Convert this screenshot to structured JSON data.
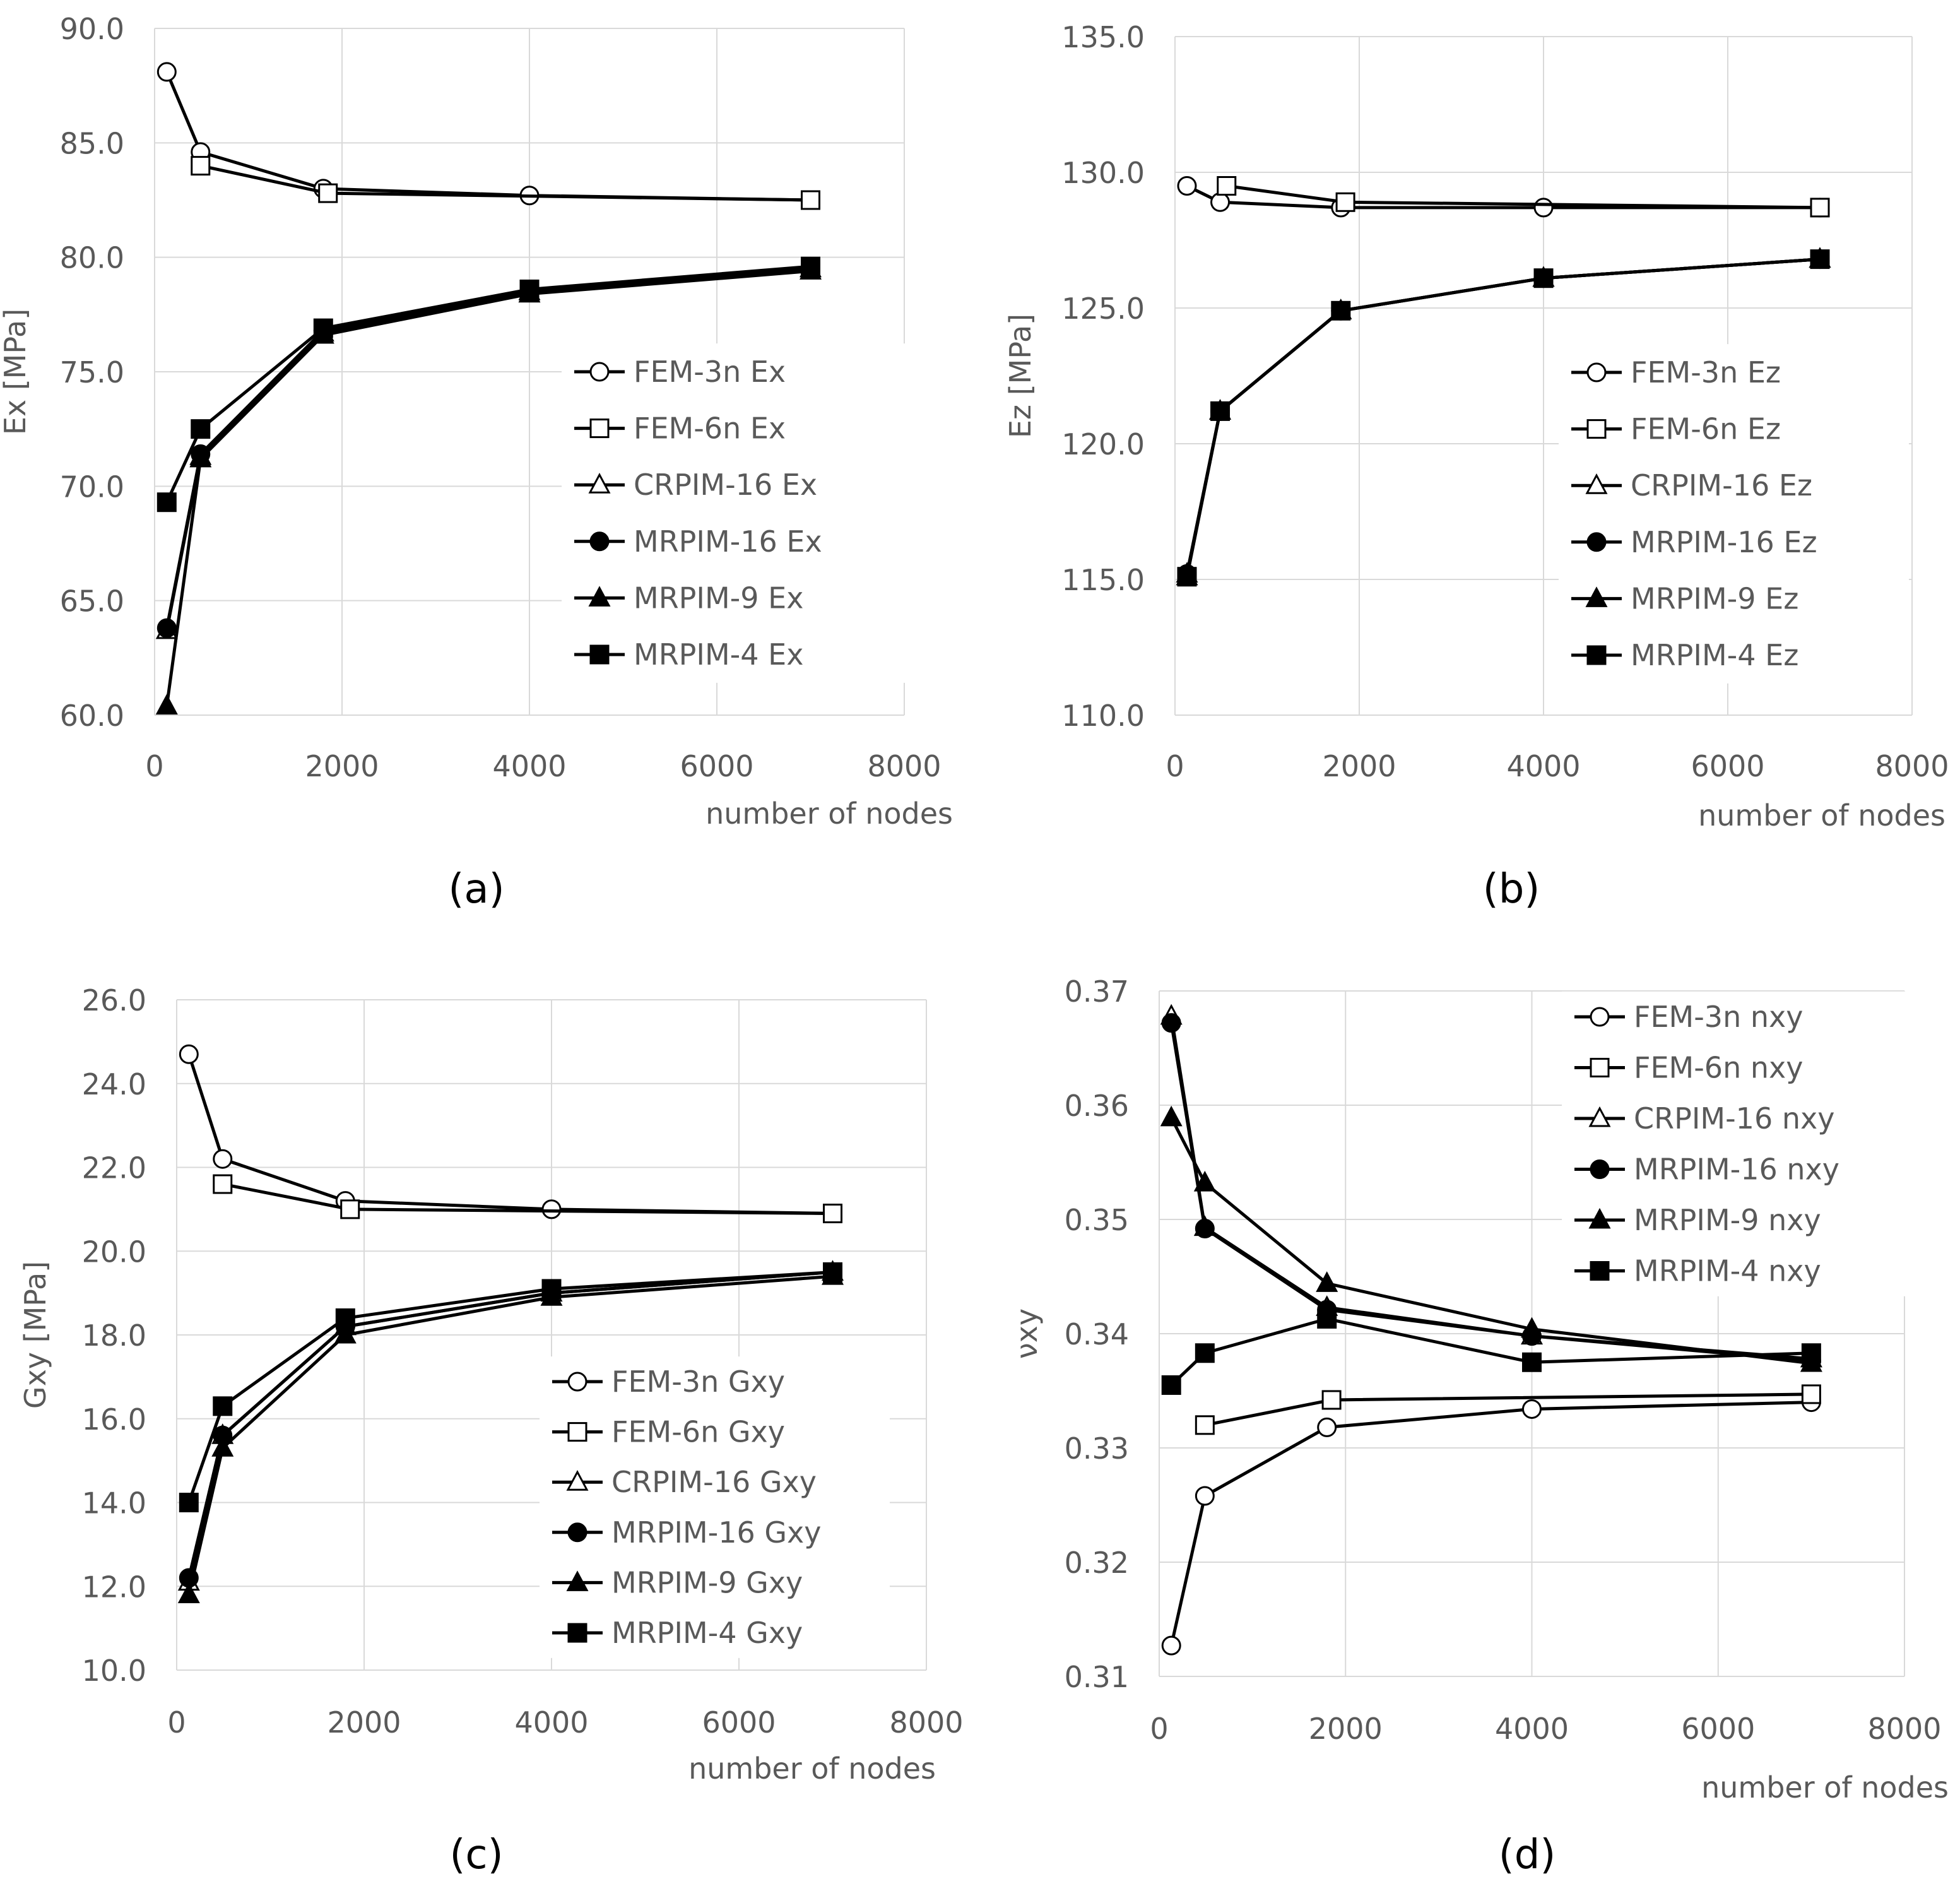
{
  "chart_data": [
    {
      "id": "a",
      "type": "line",
      "panel_label": "(a)",
      "xlabel": "number of nodes",
      "ylabel": "Ex [MPa]",
      "xlim": [
        0,
        8000
      ],
      "ylim": [
        60,
        90
      ],
      "x_ticks": [
        0,
        2000,
        4000,
        6000,
        8000
      ],
      "x_tick_labels": [
        "0",
        "2000",
        "4000",
        "6000",
        "8000"
      ],
      "y_ticks": [
        60,
        65,
        70,
        75,
        80,
        85,
        90
      ],
      "y_tick_labels": [
        "60.0",
        "65.0",
        "70.0",
        "75.0",
        "80.0",
        "85.0",
        "90.0"
      ],
      "grid": true,
      "legend_position": "right-middle",
      "series": [
        {
          "name": "FEM-3n Ex",
          "marker": "circle-open",
          "x": [
            130,
            490,
            1800,
            4000,
            7000
          ],
          "values": [
            88.1,
            84.6,
            83.0,
            82.7,
            82.5
          ]
        },
        {
          "name": "FEM-6n Ex",
          "marker": "square-open",
          "x": [
            490,
            1850,
            7000
          ],
          "values": [
            84.0,
            82.8,
            82.5
          ]
        },
        {
          "name": "CRPIM-16 Ex",
          "marker": "triangle-open",
          "x": [
            130,
            490,
            1800,
            4000,
            7000
          ],
          "values": [
            63.7,
            71.3,
            76.7,
            78.5,
            79.5
          ]
        },
        {
          "name": "MRPIM-16 Ex",
          "marker": "circle-filled",
          "x": [
            130,
            490,
            1800,
            4000,
            7000
          ],
          "values": [
            63.8,
            71.4,
            76.8,
            78.5,
            79.5
          ]
        },
        {
          "name": "MRPIM-9 Ex",
          "marker": "triangle-filled",
          "x": [
            130,
            490,
            1800,
            4000,
            7000
          ],
          "values": [
            60.4,
            71.2,
            76.6,
            78.4,
            79.4
          ]
        },
        {
          "name": "MRPIM-4 Ex",
          "marker": "square-filled",
          "x": [
            130,
            490,
            1800,
            4000,
            7000
          ],
          "values": [
            69.3,
            72.5,
            76.9,
            78.6,
            79.6
          ]
        }
      ]
    },
    {
      "id": "b",
      "type": "line",
      "panel_label": "(b)",
      "xlabel": "number of nodes",
      "ylabel": "Ez [MPa]",
      "xlim": [
        0,
        8000
      ],
      "ylim": [
        110,
        135
      ],
      "x_ticks": [
        0,
        2000,
        4000,
        6000,
        8000
      ],
      "x_tick_labels": [
        "0",
        "2000",
        "4000",
        "6000",
        "8000"
      ],
      "y_ticks": [
        110,
        115,
        120,
        125,
        130,
        135
      ],
      "y_tick_labels": [
        "110.0",
        "115.0",
        "120.0",
        "125.0",
        "130.0",
        "135.0"
      ],
      "grid": true,
      "legend_position": "right-middle",
      "series": [
        {
          "name": "FEM-3n Ez",
          "marker": "circle-open",
          "x": [
            130,
            490,
            1800,
            4000,
            7000
          ],
          "values": [
            129.5,
            128.9,
            128.7,
            128.7,
            128.7
          ]
        },
        {
          "name": "FEM-6n Ez",
          "marker": "square-open",
          "x": [
            560,
            1850,
            7000
          ],
          "values": [
            129.5,
            128.9,
            128.7
          ]
        },
        {
          "name": "CRPIM-16 Ez",
          "marker": "triangle-open",
          "x": [
            130,
            490,
            1800,
            4000,
            7000
          ],
          "values": [
            115.2,
            121.2,
            124.9,
            126.1,
            126.8
          ]
        },
        {
          "name": "MRPIM-16 Ez",
          "marker": "circle-filled",
          "x": [
            130,
            490,
            1800,
            4000,
            7000
          ],
          "values": [
            115.2,
            121.2,
            124.9,
            126.1,
            126.8
          ]
        },
        {
          "name": "MRPIM-9 Ez",
          "marker": "triangle-filled",
          "x": [
            130,
            490,
            1800,
            4000,
            7000
          ],
          "values": [
            115.1,
            121.2,
            124.9,
            126.1,
            126.8
          ]
        },
        {
          "name": "MRPIM-4 Ez",
          "marker": "square-filled",
          "x": [
            130,
            490,
            1800,
            4000,
            7000
          ],
          "values": [
            115.1,
            121.2,
            124.9,
            126.1,
            126.8
          ]
        }
      ]
    },
    {
      "id": "c",
      "type": "line",
      "panel_label": "(c)",
      "xlabel": "number of nodes",
      "ylabel": "Gxy [MPa]",
      "xlim": [
        0,
        8000
      ],
      "ylim": [
        10,
        26
      ],
      "x_ticks": [
        0,
        2000,
        4000,
        6000,
        8000
      ],
      "x_tick_labels": [
        "0",
        "2000",
        "4000",
        "6000",
        "8000"
      ],
      "y_ticks": [
        10,
        12,
        14,
        16,
        18,
        20,
        22,
        24,
        26
      ],
      "y_tick_labels": [
        "10.0",
        "12.0",
        "14.0",
        "16.0",
        "18.0",
        "20.0",
        "22.0",
        "24.0",
        "26.0"
      ],
      "grid": true,
      "legend_position": "right-middle",
      "series": [
        {
          "name": "FEM-3n Gxy",
          "marker": "circle-open",
          "x": [
            130,
            490,
            1800,
            4000,
            7000
          ],
          "values": [
            24.7,
            22.2,
            21.2,
            21.0,
            20.9
          ]
        },
        {
          "name": "FEM-6n Gxy",
          "marker": "square-open",
          "x": [
            490,
            1850,
            7000
          ],
          "values": [
            21.6,
            21.0,
            20.9
          ]
        },
        {
          "name": "CRPIM-16 Gxy",
          "marker": "triangle-open",
          "x": [
            130,
            490,
            1800,
            4000,
            7000
          ],
          "values": [
            12.1,
            15.6,
            18.2,
            19.0,
            19.5
          ]
        },
        {
          "name": "MRPIM-16 Gxy",
          "marker": "circle-filled",
          "x": [
            130,
            490,
            1800,
            4000,
            7000
          ],
          "values": [
            12.2,
            15.6,
            18.2,
            19.0,
            19.5
          ]
        },
        {
          "name": "MRPIM-9 Gxy",
          "marker": "triangle-filled",
          "x": [
            130,
            490,
            1800,
            4000,
            7000
          ],
          "values": [
            11.8,
            15.3,
            18.0,
            18.9,
            19.4
          ]
        },
        {
          "name": "MRPIM-4 Gxy",
          "marker": "square-filled",
          "x": [
            130,
            490,
            1800,
            4000,
            7000
          ],
          "values": [
            14.0,
            16.3,
            18.4,
            19.1,
            19.5
          ]
        }
      ]
    },
    {
      "id": "d",
      "type": "line",
      "panel_label": "(d)",
      "xlabel": "number of nodes",
      "ylabel": "νxy",
      "xlim": [
        0,
        8000
      ],
      "ylim": [
        0.31,
        0.37
      ],
      "x_ticks": [
        0,
        2000,
        4000,
        6000,
        8000
      ],
      "x_tick_labels": [
        "0",
        "2000",
        "4000",
        "6000",
        "8000"
      ],
      "y_ticks": [
        0.31,
        0.32,
        0.33,
        0.34,
        0.35,
        0.36,
        0.37
      ],
      "y_tick_labels": [
        "0.31",
        "0.32",
        "0.33",
        "0.34",
        "0.35",
        "0.36",
        "0.37"
      ],
      "grid": true,
      "legend_position": "top-right",
      "series": [
        {
          "name": "FEM-3n nxy",
          "marker": "circle-open",
          "x": [
            130,
            490,
            1800,
            4000,
            7000
          ],
          "values": [
            0.3127,
            0.3258,
            0.3318,
            0.3334,
            0.334
          ]
        },
        {
          "name": "FEM-6n nxy",
          "marker": "square-open",
          "x": [
            490,
            1850,
            7000
          ],
          "values": [
            0.332,
            0.3342,
            0.3347
          ]
        },
        {
          "name": "CRPIM-16 nxy",
          "marker": "triangle-open",
          "x": [
            130,
            490,
            1800,
            4000,
            7000
          ],
          "values": [
            0.3678,
            0.3493,
            0.3423,
            0.3398,
            0.3378
          ]
        },
        {
          "name": "MRPIM-16 nxy",
          "marker": "circle-filled",
          "x": [
            130,
            490,
            1800,
            4000,
            7000
          ],
          "values": [
            0.3672,
            0.3492,
            0.3421,
            0.3398,
            0.3376
          ]
        },
        {
          "name": "MRPIM-9 nxy",
          "marker": "triangle-filled",
          "x": [
            130,
            490,
            1800,
            4000,
            7000
          ],
          "values": [
            0.3589,
            0.3532,
            0.3444,
            0.3404,
            0.3374
          ]
        },
        {
          "name": "MRPIM-4 nxy",
          "marker": "square-filled",
          "x": [
            130,
            490,
            1800,
            4000,
            7000
          ],
          "values": [
            0.3355,
            0.3383,
            0.3413,
            0.3375,
            0.3383
          ]
        }
      ]
    }
  ]
}
